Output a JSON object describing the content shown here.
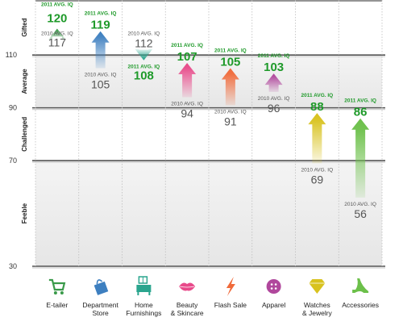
{
  "chart_data": {
    "type": "bar",
    "ylim": [
      30,
      140
    ],
    "yticks": [
      30,
      70,
      90,
      110
    ],
    "bands": [
      {
        "label": "Gifted",
        "from": 110,
        "to": 140
      },
      {
        "label": "Average",
        "from": 90,
        "to": 110
      },
      {
        "label": "Challenged",
        "from": 70,
        "to": 90
      },
      {
        "label": "Feeble",
        "from": 30,
        "to": 70
      }
    ],
    "label_2011": "2011 AVG. IQ",
    "label_2010": "2010 AVG. IQ",
    "categories": [
      {
        "name": "E-tailer",
        "icon": "cart-icon",
        "y2010": 117,
        "y2011": 120,
        "color": "#3a9a4a"
      },
      {
        "name": "Department Store",
        "icon": "shopping-bag-icon",
        "y2010": 105,
        "y2011": 119,
        "color": "#3d7fc0"
      },
      {
        "name": "Home Furnishings",
        "icon": "furniture-icon",
        "y2010": 112,
        "y2011": 108,
        "color": "#2aa58e"
      },
      {
        "name": "Beauty & Skincare",
        "icon": "lips-icon",
        "y2010": 94,
        "y2011": 107,
        "color": "#e84a8a"
      },
      {
        "name": "Flash Sale",
        "icon": "lightning-icon",
        "y2010": 91,
        "y2011": 105,
        "color": "#f06a3a"
      },
      {
        "name": "Apparel",
        "icon": "button-icon",
        "y2010": 96,
        "y2011": 103,
        "color": "#b0479c"
      },
      {
        "name": "Watches & Jewelry",
        "icon": "diamond-icon",
        "y2010": 69,
        "y2011": 88,
        "color": "#d8c21e"
      },
      {
        "name": "Accessories",
        "icon": "high-heel-icon",
        "y2010": 56,
        "y2011": 86,
        "color": "#6cc04a"
      }
    ],
    "label_color_2011": "#1f9a2a",
    "label_color_2010": "#555555"
  }
}
